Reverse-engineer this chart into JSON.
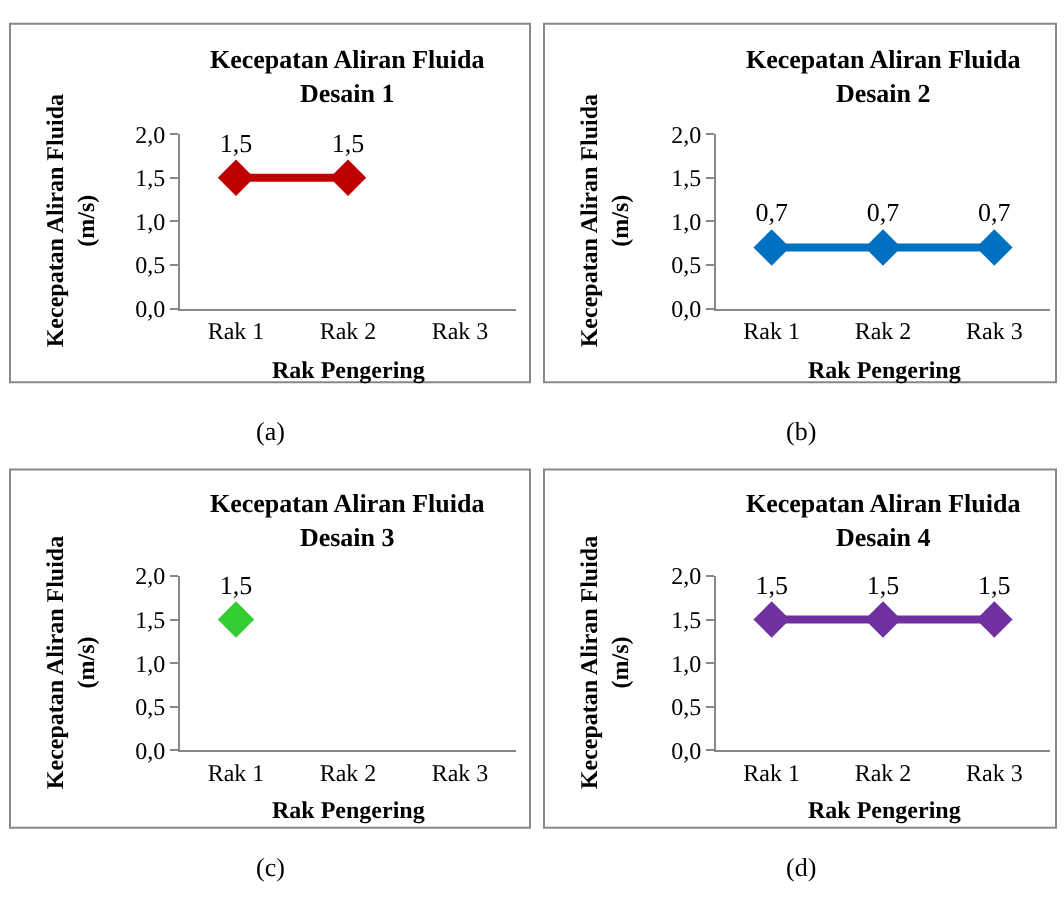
{
  "chart_data": [
    {
      "type": "line",
      "title": "Kecepatan Aliran Fluida",
      "subtitle": "Desain 1",
      "xlabel": "Rak Pengering",
      "ylabel": "Kecepatan Aliran Fluida (m/s)",
      "categories": [
        "Rak 1",
        "Rak 2",
        "Rak 3"
      ],
      "series": [
        {
          "color": "#c00000",
          "values": [
            1.5,
            1.5,
            null
          ],
          "value_labels": [
            "1,5",
            "1,5",
            null
          ]
        }
      ],
      "ylim": [
        0,
        2
      ],
      "yticks": [
        {
          "value": 0,
          "label": "0,0"
        },
        {
          "value": 0.5,
          "label": "0,5"
        },
        {
          "value": 1,
          "label": "1,0"
        },
        {
          "value": 1.5,
          "label": "1,5"
        },
        {
          "value": 2,
          "label": "2,0"
        }
      ],
      "marker": "diamond",
      "line_style": "solid",
      "annotations": [
        "(a)"
      ]
    },
    {
      "type": "line",
      "title": "Kecepatan Aliran Fluida",
      "subtitle": "Desain 2",
      "xlabel": "Rak Pengering",
      "ylabel": "Kecepatan Aliran Fluida (m/s)",
      "categories": [
        "Rak 1",
        "Rak 2",
        "Rak 3"
      ],
      "series": [
        {
          "color": "#0070c0",
          "values": [
            0.7,
            0.7,
            0.7
          ],
          "value_labels": [
            "0,7",
            "0,7",
            "0,7"
          ]
        }
      ],
      "ylim": [
        0,
        2
      ],
      "yticks": [
        {
          "value": 0,
          "label": "0,0"
        },
        {
          "value": 0.5,
          "label": "0,5"
        },
        {
          "value": 1,
          "label": "1,0"
        },
        {
          "value": 1.5,
          "label": "1,5"
        },
        {
          "value": 2,
          "label": "2,0"
        }
      ],
      "marker": "diamond",
      "line_style": "solid",
      "annotations": [
        "(b)"
      ]
    },
    {
      "type": "line",
      "title": "Kecepatan Aliran Fluida",
      "subtitle": "Desain 3",
      "xlabel": "Rak Pengering",
      "ylabel": "Kecepatan Aliran Fluida (m/s)",
      "categories": [
        "Rak 1",
        "Rak 2",
        "Rak 3"
      ],
      "series": [
        {
          "color": "#33cc33",
          "values": [
            1.5,
            null,
            null
          ],
          "value_labels": [
            "1,5",
            null,
            null
          ]
        }
      ],
      "ylim": [
        0,
        2
      ],
      "yticks": [
        {
          "value": 0,
          "label": "0,0"
        },
        {
          "value": 0.5,
          "label": "0,5"
        },
        {
          "value": 1,
          "label": "1,0"
        },
        {
          "value": 1.5,
          "label": "1,5"
        },
        {
          "value": 2,
          "label": "2,0"
        }
      ],
      "marker": "diamond",
      "line_style": "solid",
      "annotations": [
        "(c)"
      ]
    },
    {
      "type": "line",
      "title": "Kecepatan Aliran Fluida",
      "subtitle": "Desain 4",
      "xlabel": "Rak Pengering",
      "ylabel": "Kecepatan Aliran Fluida (m/s)",
      "categories": [
        "Rak 1",
        "Rak 2",
        "Rak 3"
      ],
      "series": [
        {
          "color": "#7030a0",
          "values": [
            1.5,
            1.5,
            1.5
          ],
          "value_labels": [
            "1,5",
            "1,5",
            "1,5"
          ]
        }
      ],
      "ylim": [
        0,
        2
      ],
      "yticks": [
        {
          "value": 0,
          "label": "0,0"
        },
        {
          "value": 0.5,
          "label": "0,5"
        },
        {
          "value": 1,
          "label": "1,0"
        },
        {
          "value": 1.5,
          "label": "1,5"
        },
        {
          "value": 2,
          "label": "2,0"
        }
      ],
      "marker": "diamond",
      "line_style": "solid",
      "annotations": [
        "(d)"
      ]
    }
  ]
}
